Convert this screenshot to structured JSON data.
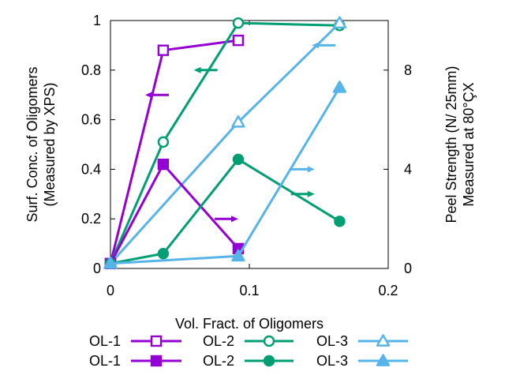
{
  "chart_data": {
    "type": "line",
    "xlabel": "Vol. Fract. of Oligomers",
    "ylabel": [
      "Surf. Conc. of Oligomers",
      "(Measured by XPS)"
    ],
    "y2label": [
      "Peel Strength (N/ 25mm)",
      "Measured at 80°ÇX"
    ],
    "xlim": [
      0,
      0.2
    ],
    "ylim": [
      0,
      1
    ],
    "y2lim": [
      0,
      10
    ],
    "xticks": [
      0,
      0.1,
      0.2
    ],
    "xtick_labels": [
      "0",
      "0.1",
      "0.2"
    ],
    "yticks": [
      0,
      0.2,
      0.4,
      0.6,
      0.8,
      1
    ],
    "ytick_labels": [
      "0",
      "0.2",
      "0.4",
      "0.6",
      "0.8",
      "1"
    ],
    "y2ticks": [
      0,
      4,
      8
    ],
    "y2tick_labels": [
      "0",
      "4",
      "8"
    ],
    "grid": false,
    "legend_position": "bottom",
    "series": [
      {
        "name": "OL-1",
        "axis": "left",
        "marker": "square-open",
        "color": "#9400d3",
        "x": [
          0,
          0.038,
          0.092
        ],
        "y": [
          0.02,
          0.88,
          0.92
        ]
      },
      {
        "name": "OL-2",
        "axis": "left",
        "marker": "circle-open",
        "color": "#009e73",
        "x": [
          0,
          0.038,
          0.092,
          0.165
        ],
        "y": [
          0.02,
          0.51,
          0.99,
          0.98
        ]
      },
      {
        "name": "OL-3",
        "axis": "left",
        "marker": "triangle-open",
        "color": "#56b4e9",
        "x": [
          0,
          0.092,
          0.165
        ],
        "y": [
          0.02,
          0.59,
          0.99
        ]
      },
      {
        "name": "OL-1",
        "axis": "right",
        "marker": "square-filled",
        "color": "#9400d3",
        "x": [
          0,
          0.038,
          0.092
        ],
        "y": [
          0.2,
          4.2,
          0.8
        ]
      },
      {
        "name": "OL-2",
        "axis": "right",
        "marker": "circle-filled",
        "color": "#009e73",
        "x": [
          0,
          0.038,
          0.092,
          0.165
        ],
        "y": [
          0.2,
          0.6,
          4.4,
          1.9
        ]
      },
      {
        "name": "OL-3",
        "axis": "right",
        "marker": "triangle-filled",
        "color": "#56b4e9",
        "x": [
          0,
          0.092,
          0.165
        ],
        "y": [
          0.2,
          0.5,
          7.3
        ]
      }
    ],
    "arrows": [
      {
        "x": 0.025,
        "y": 0.7,
        "axis": "left",
        "direction": "left",
        "color": "#9400d3"
      },
      {
        "x": 0.06,
        "y": 0.8,
        "axis": "left",
        "direction": "left",
        "color": "#009e73"
      },
      {
        "x": 0.145,
        "y": 0.9,
        "axis": "left",
        "direction": "left",
        "color": "#56b4e9"
      },
      {
        "x": 0.075,
        "y": 2.0,
        "axis": "right",
        "direction": "right",
        "color": "#9400d3"
      },
      {
        "x": 0.13,
        "y": 3.0,
        "axis": "right",
        "direction": "right",
        "color": "#009e73"
      },
      {
        "x": 0.13,
        "y": 4.0,
        "axis": "right",
        "direction": "right",
        "color": "#56b4e9"
      }
    ]
  }
}
